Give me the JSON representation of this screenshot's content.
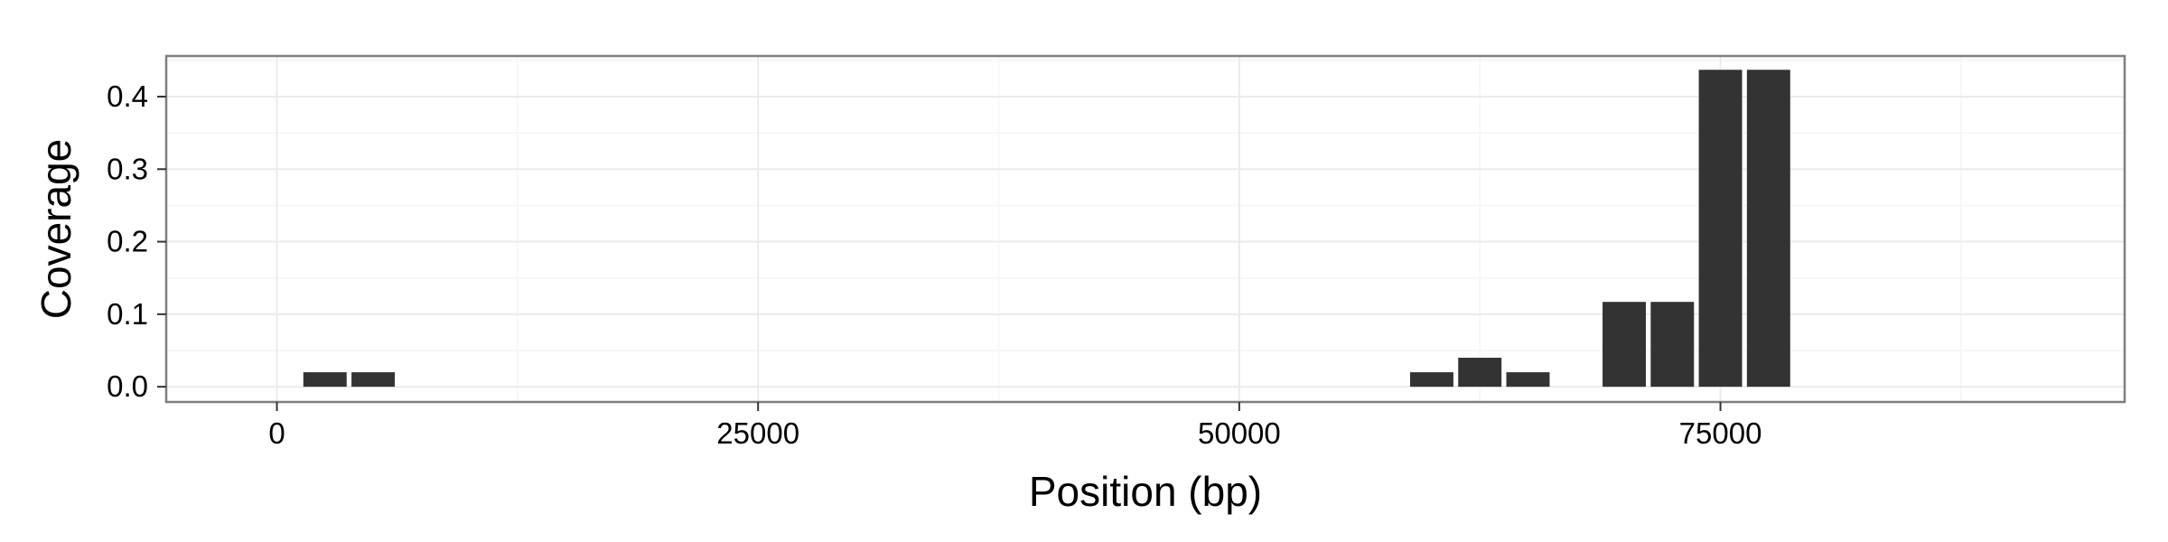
{
  "chart_data": {
    "type": "bar",
    "xlabel": "Position (bp)",
    "ylabel": "Coverage",
    "xlim": [
      -5750,
      96000
    ],
    "ylim": [
      -0.021,
      0.456
    ],
    "x_ticks": [
      0,
      25000,
      50000,
      75000
    ],
    "x_tick_labels": [
      "0",
      "25000",
      "50000",
      "75000"
    ],
    "y_ticks": [
      0.0,
      0.1,
      0.2,
      0.3,
      0.4
    ],
    "y_tick_labels": [
      "0.0",
      "0.1",
      "0.2",
      "0.3",
      "0.4"
    ],
    "bar_width": 2250,
    "bars": [
      {
        "x": 2500,
        "y": 0.02
      },
      {
        "x": 5000,
        "y": 0.02
      },
      {
        "x": 60000,
        "y": 0.02
      },
      {
        "x": 62500,
        "y": 0.04
      },
      {
        "x": 65000,
        "y": 0.02
      },
      {
        "x": 70000,
        "y": 0.117
      },
      {
        "x": 72500,
        "y": 0.117
      },
      {
        "x": 75000,
        "y": 0.437
      },
      {
        "x": 77500,
        "y": 0.437
      }
    ],
    "grid": true,
    "colors": {
      "bar": "#333333",
      "panel_border": "#7f7f7f",
      "grid_major": "#ebebeb",
      "grid_minor": "#f5f5f5"
    }
  }
}
